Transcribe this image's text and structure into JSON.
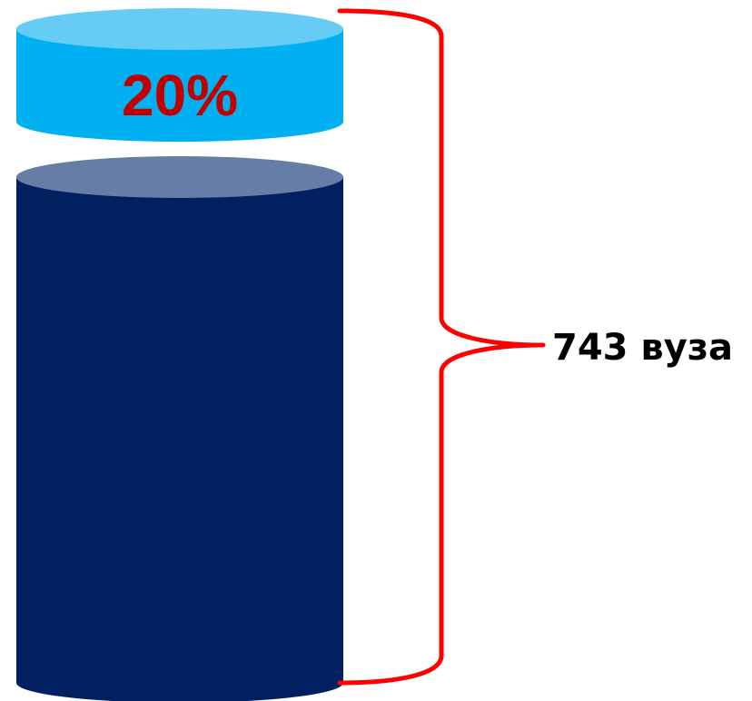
{
  "top_segment": {
    "label": "20%",
    "share_percent": 20
  },
  "total": {
    "label": "743 вуза",
    "count": 743
  },
  "colors": {
    "top_body": "#00B0F0",
    "top_cap": "#66CCF5",
    "bottom_body": "#002060",
    "bottom_cap": "#667DA6",
    "brace": "#FF0000",
    "pct_text": "#C00000",
    "total_text": "#000000"
  }
}
